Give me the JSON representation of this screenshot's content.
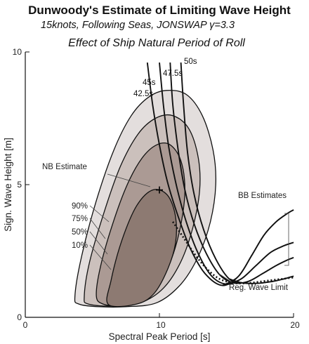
{
  "chart_data": {
    "type": "line",
    "title": "Dunwoody's Estimate of Limiting Wave Height",
    "subtitle": "15knots, Following Seas, JONSWAP γ=3.3",
    "subtitle2": "Effect of Ship Natural Period of Roll",
    "xlabel": "Spectral Peak Period [s]",
    "ylabel": "Sign. Wave Height [m]",
    "xlim": [
      0,
      20
    ],
    "ylim": [
      0,
      10
    ],
    "x_ticks": [
      "0",
      "10",
      "20"
    ],
    "y_ticks": [
      "0",
      "5",
      "10"
    ],
    "grid": false,
    "probability_contours": [
      {
        "label": "90%",
        "fill": "#e3dedd",
        "points": [
          [
            4.0,
            0.5
          ],
          [
            3.7,
            0.8
          ],
          [
            4.2,
            2.3
          ],
          [
            5.3,
            4.4
          ],
          [
            6.6,
            6.3
          ],
          [
            7.9,
            7.6
          ],
          [
            9.2,
            8.3
          ],
          [
            10.5,
            8.55
          ],
          [
            12.0,
            8.4
          ],
          [
            13.2,
            7.6
          ],
          [
            14.0,
            6.3
          ],
          [
            14.2,
            5.0
          ],
          [
            13.8,
            3.6
          ],
          [
            12.9,
            2.3
          ],
          [
            11.6,
            1.25
          ],
          [
            9.8,
            0.55
          ],
          [
            7.5,
            0.4
          ],
          [
            5.5,
            0.4
          ]
        ]
      },
      {
        "label": "75%",
        "fill": "#cbc0bc",
        "points": [
          [
            4.7,
            0.5
          ],
          [
            4.4,
            0.8
          ],
          [
            4.8,
            2.1
          ],
          [
            5.9,
            4.0
          ],
          [
            7.1,
            5.7
          ],
          [
            8.4,
            6.9
          ],
          [
            9.7,
            7.5
          ],
          [
            11.0,
            7.6
          ],
          [
            12.2,
            7.1
          ],
          [
            12.9,
            6.0
          ],
          [
            13.0,
            4.8
          ],
          [
            12.5,
            3.4
          ],
          [
            11.6,
            2.1
          ],
          [
            10.3,
            1.1
          ],
          [
            8.6,
            0.55
          ],
          [
            6.6,
            0.42
          ]
        ]
      },
      {
        "label": "50%",
        "fill": "#ab9a94",
        "points": [
          [
            5.8,
            0.5
          ],
          [
            5.3,
            0.8
          ],
          [
            5.6,
            1.9
          ],
          [
            6.5,
            3.5
          ],
          [
            7.6,
            5.0
          ],
          [
            8.7,
            6.0
          ],
          [
            9.8,
            6.5
          ],
          [
            10.8,
            6.5
          ],
          [
            11.6,
            5.9
          ],
          [
            11.9,
            4.8
          ],
          [
            11.6,
            3.5
          ],
          [
            10.9,
            2.2
          ],
          [
            9.8,
            1.1
          ],
          [
            8.3,
            0.55
          ],
          [
            6.9,
            0.44
          ]
        ]
      },
      {
        "label": "10%",
        "fill": "#8d7a72",
        "points": [
          [
            6.2,
            0.48
          ],
          [
            6.4,
            1.4
          ],
          [
            7.2,
            2.9
          ],
          [
            8.3,
            4.2
          ],
          [
            9.5,
            4.8
          ],
          [
            10.6,
            4.6
          ],
          [
            11.2,
            3.8
          ],
          [
            11.2,
            2.8
          ],
          [
            10.6,
            1.8
          ],
          [
            9.6,
            0.9
          ],
          [
            8.3,
            0.5
          ]
        ]
      }
    ],
    "period_series": [
      {
        "label": "42.5s",
        "points": [
          [
            9.1,
            9.6
          ],
          [
            9.5,
            8.0
          ],
          [
            10.0,
            6.5
          ],
          [
            10.6,
            5.1
          ],
          [
            11.4,
            3.8
          ],
          [
            12.3,
            2.6
          ],
          [
            13.4,
            1.65
          ],
          [
            14.7,
            1.2
          ],
          [
            15.9,
            1.55
          ],
          [
            16.9,
            2.35
          ],
          [
            17.8,
            3.1
          ],
          [
            18.7,
            3.6
          ],
          [
            19.5,
            3.9
          ],
          [
            20.0,
            4.05
          ]
        ]
      },
      {
        "label": "45s",
        "points": [
          [
            10.0,
            9.6
          ],
          [
            10.3,
            8.0
          ],
          [
            10.7,
            6.4
          ],
          [
            11.3,
            4.9
          ],
          [
            12.0,
            3.6
          ],
          [
            12.9,
            2.4
          ],
          [
            13.9,
            1.55
          ],
          [
            15.0,
            1.25
          ],
          [
            16.1,
            1.45
          ],
          [
            17.2,
            1.95
          ],
          [
            18.3,
            2.45
          ],
          [
            19.3,
            2.7
          ],
          [
            20.0,
            2.82
          ]
        ]
      },
      {
        "label": "47.5s",
        "points": [
          [
            10.8,
            9.6
          ],
          [
            11.0,
            8.0
          ],
          [
            11.4,
            6.3
          ],
          [
            11.9,
            4.8
          ],
          [
            12.6,
            3.5
          ],
          [
            13.5,
            2.4
          ],
          [
            14.5,
            1.6
          ],
          [
            15.5,
            1.3
          ],
          [
            16.6,
            1.35
          ],
          [
            17.7,
            1.65
          ],
          [
            18.7,
            1.95
          ],
          [
            19.5,
            2.15
          ],
          [
            20.0,
            2.25
          ]
        ]
      },
      {
        "label": "50s",
        "points": [
          [
            11.6,
            9.6
          ],
          [
            11.8,
            8.0
          ],
          [
            12.1,
            6.2
          ],
          [
            12.6,
            4.6
          ],
          [
            13.3,
            3.3
          ],
          [
            14.2,
            2.2
          ],
          [
            15.2,
            1.45
          ],
          [
            16.2,
            1.3
          ],
          [
            17.3,
            1.28
          ],
          [
            18.4,
            1.35
          ],
          [
            19.3,
            1.45
          ],
          [
            20.0,
            1.55
          ]
        ]
      }
    ],
    "reg_wave_limit": {
      "label": "Reg. Wave Limit",
      "points": [
        [
          11.0,
          3.6
        ],
        [
          11.8,
          3.0
        ],
        [
          12.6,
          2.4
        ],
        [
          13.4,
          1.9
        ],
        [
          14.3,
          1.5
        ],
        [
          15.2,
          1.32
        ],
        [
          16.0,
          1.28
        ],
        [
          16.8,
          1.3
        ],
        [
          17.6,
          1.35
        ],
        [
          18.4,
          1.4
        ],
        [
          19.2,
          1.45
        ],
        [
          20.0,
          1.5
        ]
      ]
    },
    "nb_estimate": {
      "label": "NB Estimate",
      "x": 10.0,
      "y": 4.8
    },
    "bb_estimates_label": "BB Estimates"
  }
}
